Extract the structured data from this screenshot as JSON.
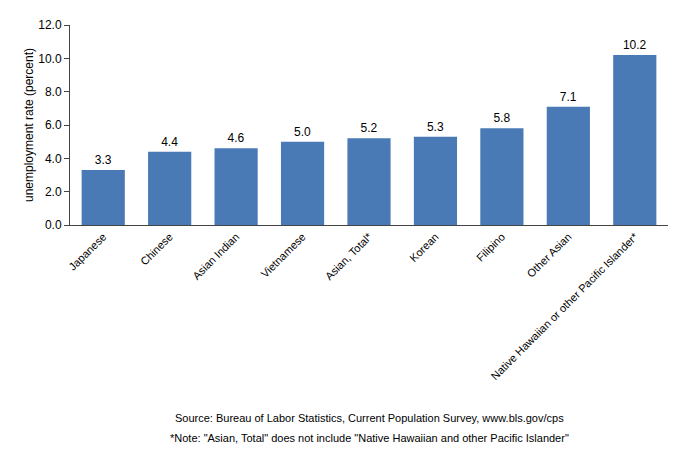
{
  "chart_data": {
    "type": "bar",
    "categories": [
      "Japanese",
      "Chinese",
      "Asian Indian",
      "Vietnamese",
      "Asian, Total*",
      "Korean",
      "Filipino",
      "Other Asian",
      "Native Hawaiian or other Pacific Islander*"
    ],
    "values": [
      3.3,
      4.4,
      4.6,
      5.0,
      5.2,
      5.3,
      5.8,
      7.1,
      10.2
    ],
    "value_labels": [
      "3.3",
      "4.4",
      "4.6",
      "5.0",
      "5.2",
      "5.3",
      "5.8",
      "7.1",
      "10.2"
    ],
    "data_labels": true,
    "color": "#4a7ab5",
    "y_label": "unemployment rate (percent)",
    "ylim": [
      0,
      12.0
    ],
    "yticks": [
      {
        "value": 0,
        "label": "0.0"
      },
      {
        "value": 2,
        "label": "2.0"
      },
      {
        "value": 4,
        "label": "4.0"
      },
      {
        "value": 6,
        "label": "6.0"
      },
      {
        "value": 8,
        "label": "8.0"
      },
      {
        "value": 10,
        "label": "10.0"
      },
      {
        "value": 12,
        "label": "12.0"
      }
    ],
    "grid": false,
    "annotations": [
      "Source: Bureau of Labor Statistics, Current Population Survey, www.bls.gov/cps",
      "*Note: \"Asian, Total\" does not include \"Native Hawaiian and other Pacific Islander\""
    ]
  }
}
